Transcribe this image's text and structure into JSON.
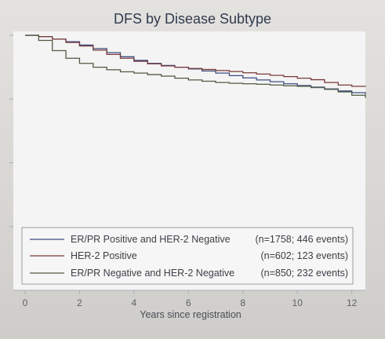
{
  "chart_data": {
    "type": "line",
    "title": "DFS by Disease Subtype",
    "xlabel": "Years since registration",
    "ylabel": "",
    "xlim": [
      0,
      12.5
    ],
    "ylim": [
      0,
      1
    ],
    "x_ticks": [
      0,
      2,
      4,
      6,
      8,
      10,
      12
    ],
    "x_tick_labels": [
      "0",
      "2",
      "4",
      "6",
      "8",
      "10",
      "12"
    ],
    "y_ticks": [
      0.25,
      0.5,
      0.75,
      1.0
    ],
    "grid": false,
    "legend_position": "bottom",
    "series": [
      {
        "name": "ER/PR Positive and HER-2 Negative",
        "stats": "(n=1758; 446 events)",
        "color": "#3d4e83",
        "x": [
          0,
          0.5,
          1,
          1.5,
          2,
          2.5,
          3,
          3.5,
          4,
          4.5,
          5,
          5.5,
          6,
          6.5,
          7,
          7.5,
          8,
          8.5,
          9,
          9.5,
          10,
          10.5,
          11,
          11.5,
          12,
          12.5
        ],
        "y": [
          1.0,
          0.995,
          0.985,
          0.975,
          0.962,
          0.948,
          0.932,
          0.916,
          0.902,
          0.89,
          0.882,
          0.875,
          0.868,
          0.86,
          0.852,
          0.842,
          0.833,
          0.825,
          0.818,
          0.81,
          0.803,
          0.797,
          0.79,
          0.782,
          0.775,
          0.768
        ]
      },
      {
        "name": "HER-2 Positive",
        "stats": "(n=602; 123 events)",
        "color": "#7a3a3a",
        "x": [
          0,
          0.5,
          1,
          1.5,
          2,
          2.5,
          3,
          3.5,
          4,
          4.5,
          5,
          5.5,
          6,
          6.5,
          7,
          7.5,
          8,
          8.5,
          9,
          9.5,
          10,
          10.5,
          11,
          11.5,
          12,
          12.5
        ],
        "y": [
          1.0,
          0.995,
          0.985,
          0.972,
          0.958,
          0.942,
          0.925,
          0.91,
          0.898,
          0.888,
          0.88,
          0.875,
          0.87,
          0.866,
          0.862,
          0.858,
          0.853,
          0.848,
          0.843,
          0.838,
          0.832,
          0.826,
          0.815,
          0.805,
          0.8,
          0.798
        ]
      },
      {
        "name": "ER/PR Negative and HER-2 Negative",
        "stats": "(n=850; 232 events)",
        "color": "#4f5a42",
        "x": [
          0,
          0.5,
          1,
          1.5,
          2,
          2.5,
          3,
          3.5,
          4,
          4.5,
          5,
          5.5,
          6,
          6.5,
          7,
          7.5,
          8,
          8.5,
          9,
          9.5,
          10,
          10.5,
          11,
          11.5,
          12,
          12.5
        ],
        "y": [
          1.0,
          0.98,
          0.94,
          0.91,
          0.89,
          0.875,
          0.865,
          0.857,
          0.852,
          0.846,
          0.84,
          0.832,
          0.825,
          0.82,
          0.815,
          0.812,
          0.81,
          0.808,
          0.805,
          0.802,
          0.8,
          0.795,
          0.788,
          0.778,
          0.765,
          0.755
        ]
      }
    ]
  }
}
